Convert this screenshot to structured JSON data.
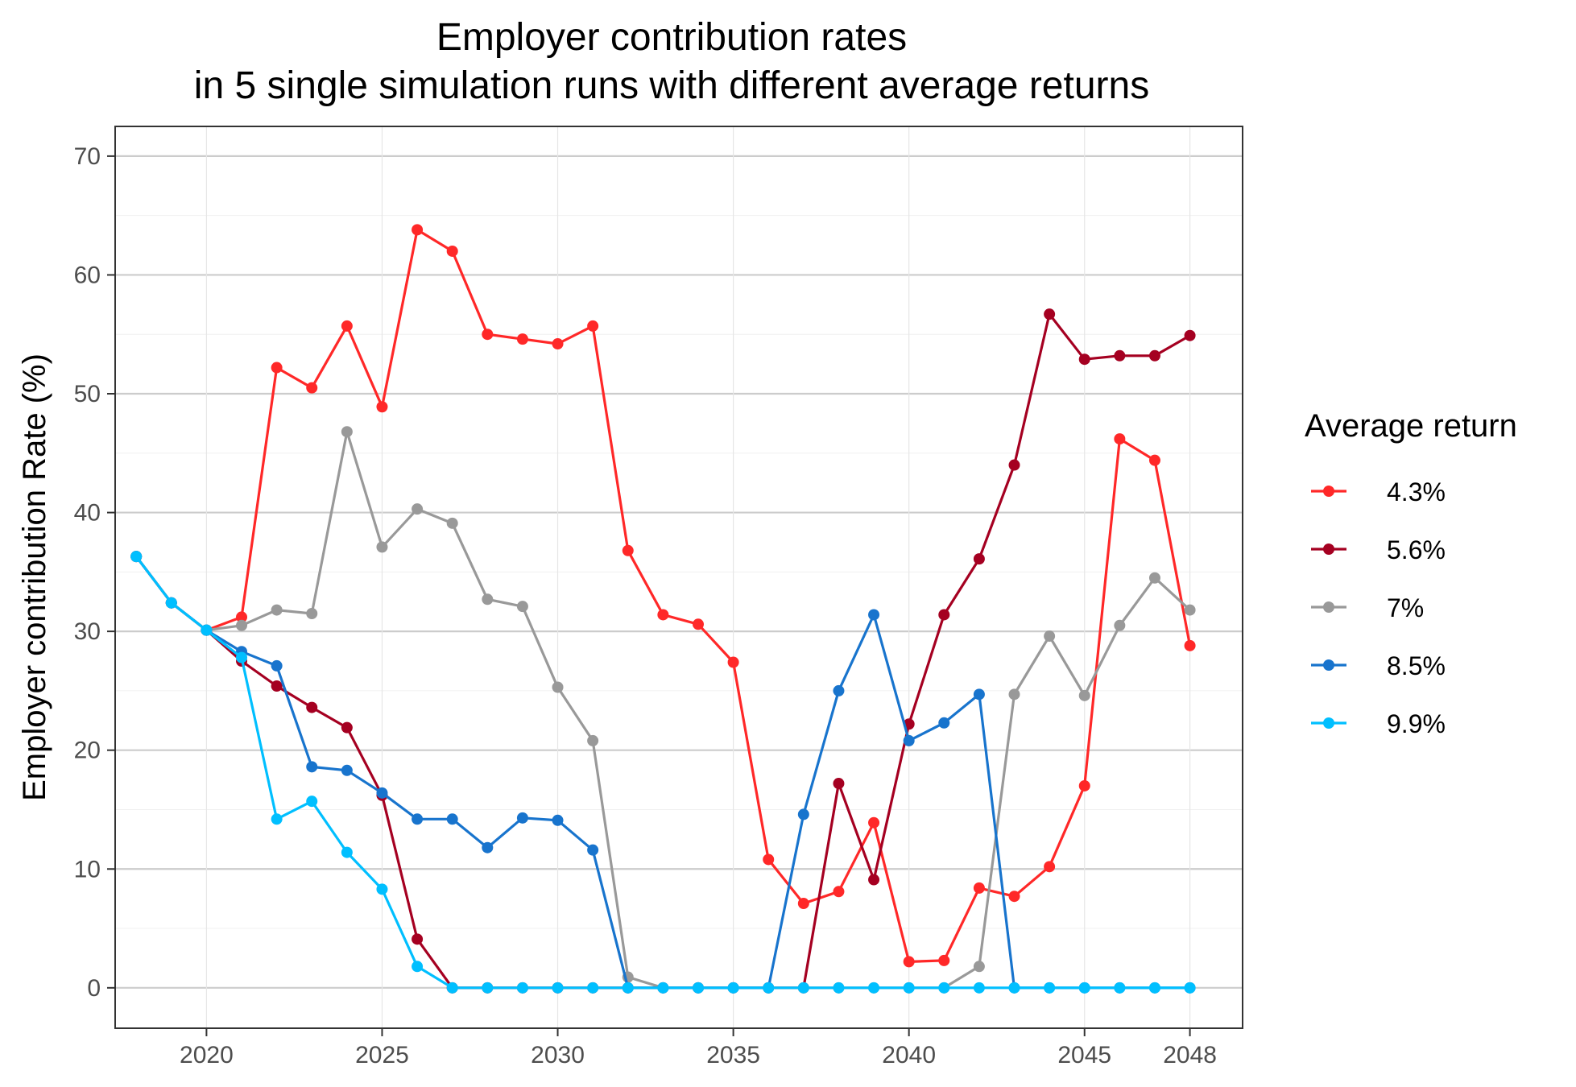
{
  "chart_data": {
    "type": "line",
    "title": "Employer contribution rates",
    "subtitle": "in 5 single simulation runs with different average returns",
    "xlabel": "",
    "ylabel": "Employer contribution Rate (%)",
    "xlim": [
      2017.4,
      2049.5
    ],
    "ylim": [
      -3.4,
      72.5
    ],
    "xticks": [
      2020,
      2025,
      2030,
      2035,
      2040,
      2045,
      2048
    ],
    "yticks": [
      0,
      10,
      20,
      30,
      40,
      50,
      60,
      70
    ],
    "grid": true,
    "legend": {
      "title": "Average return",
      "position": "right"
    },
    "x": [
      2018,
      2019,
      2020,
      2021,
      2022,
      2023,
      2024,
      2025,
      2026,
      2027,
      2028,
      2029,
      2030,
      2031,
      2032,
      2033,
      2034,
      2035,
      2036,
      2037,
      2038,
      2039,
      2040,
      2041,
      2042,
      2043,
      2044,
      2045,
      2046,
      2047,
      2048
    ],
    "series": [
      {
        "name": "4.3%",
        "color": "#ff2828",
        "values": [
          36.3,
          32.4,
          30.1,
          31.2,
          52.2,
          50.5,
          55.7,
          48.9,
          63.8,
          62.0,
          55.0,
          54.6,
          54.2,
          55.7,
          36.8,
          31.4,
          30.6,
          27.4,
          10.8,
          7.1,
          8.1,
          13.9,
          2.2,
          2.3,
          8.4,
          7.7,
          10.2,
          17.0,
          46.2,
          44.4,
          28.8
        ]
      },
      {
        "name": "5.6%",
        "color": "#a50021",
        "values": [
          36.3,
          32.4,
          30.1,
          27.5,
          25.4,
          23.6,
          21.9,
          16.2,
          4.1,
          0,
          0,
          0,
          0,
          0,
          0,
          0,
          0,
          0,
          0,
          0,
          17.2,
          9.1,
          22.2,
          31.4,
          36.1,
          44.0,
          56.7,
          52.9,
          53.2,
          53.2,
          54.9
        ]
      },
      {
        "name": "7%",
        "color": "#999999",
        "values": [
          36.3,
          32.4,
          30.1,
          30.5,
          31.8,
          31.5,
          46.8,
          37.1,
          40.3,
          39.1,
          32.7,
          32.1,
          25.3,
          20.8,
          0.9,
          0,
          0,
          0,
          0,
          0,
          0,
          0,
          0,
          0,
          1.8,
          24.7,
          29.6,
          24.6,
          30.5,
          34.5,
          31.8
        ]
      },
      {
        "name": "8.5%",
        "color": "#1874cd",
        "values": [
          36.3,
          32.4,
          30.1,
          28.3,
          27.1,
          18.6,
          18.3,
          16.4,
          14.2,
          14.2,
          11.8,
          14.3,
          14.1,
          11.6,
          0,
          0,
          0,
          0,
          0,
          14.6,
          25.0,
          31.4,
          20.8,
          22.3,
          24.7,
          0,
          0,
          0,
          0,
          0,
          0
        ]
      },
      {
        "name": "9.9%",
        "color": "#00bfff",
        "values": [
          36.3,
          32.4,
          30.1,
          27.8,
          14.2,
          15.7,
          11.4,
          8.3,
          1.8,
          0,
          0,
          0,
          0,
          0,
          0,
          0,
          0,
          0,
          0,
          0,
          0,
          0,
          0,
          0,
          0,
          0,
          0,
          0,
          0,
          0,
          0
        ]
      }
    ]
  }
}
